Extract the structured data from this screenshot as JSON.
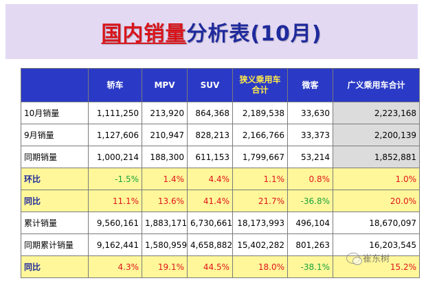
{
  "title": {
    "part1": "国内销量",
    "part2": "分析表(10月)"
  },
  "headers": [
    "",
    "轿车",
    "MPV",
    "SUV",
    "狭义乘用车合计",
    "微客",
    "广义乘用车合计"
  ],
  "rows": [
    {
      "label": "10月销量",
      "values": [
        "1,111,250",
        "213,920",
        "864,368",
        "2,189,538",
        "33,630",
        "2,223,168"
      ],
      "type": "normal"
    },
    {
      "label": "9月销量",
      "values": [
        "1,127,606",
        "210,947",
        "828,213",
        "2,166,766",
        "33,373",
        "2,200,139"
      ],
      "type": "normal"
    },
    {
      "label": "同期销量",
      "values": [
        "1,000,214",
        "188,300",
        "611,153",
        "1,799,667",
        "53,214",
        "1,852,881"
      ],
      "type": "normal"
    },
    {
      "label": "环比",
      "values": [
        "-1.5%",
        "1.4%",
        "4.4%",
        "1.1%",
        "0.8%",
        "1.0%"
      ],
      "type": "yoy"
    },
    {
      "label": "同比",
      "values": [
        "11.1%",
        "13.6%",
        "41.4%",
        "21.7%",
        "-36.8%",
        "20.0%"
      ],
      "type": "yoy"
    },
    {
      "label": "累计销量",
      "values": [
        "9,560,161",
        "1,883,171",
        "6,730,661",
        "18,173,993",
        "496,104",
        "18,670,097"
      ],
      "type": "normal"
    },
    {
      "label": "同期累计销量",
      "values": [
        "9,162,441",
        "1,580,959",
        "4,658,882",
        "15,402,282",
        "801,263",
        "16,203,545"
      ],
      "type": "normal"
    },
    {
      "label": "同比",
      "values": [
        "4.3%",
        "19.1%",
        "44.5%",
        "18.0%",
        "-38.1%",
        "15.2%"
      ],
      "type": "yoy"
    }
  ],
  "watermark": {
    "text": "崔东树",
    "icon": "wechat-icon"
  },
  "colors": {
    "header_bg": "#2a3ac6",
    "yoy_bg": "#fff79a",
    "positive": "#e0141a",
    "negative": "#18a33a",
    "title_band": "#e3d9f3"
  }
}
